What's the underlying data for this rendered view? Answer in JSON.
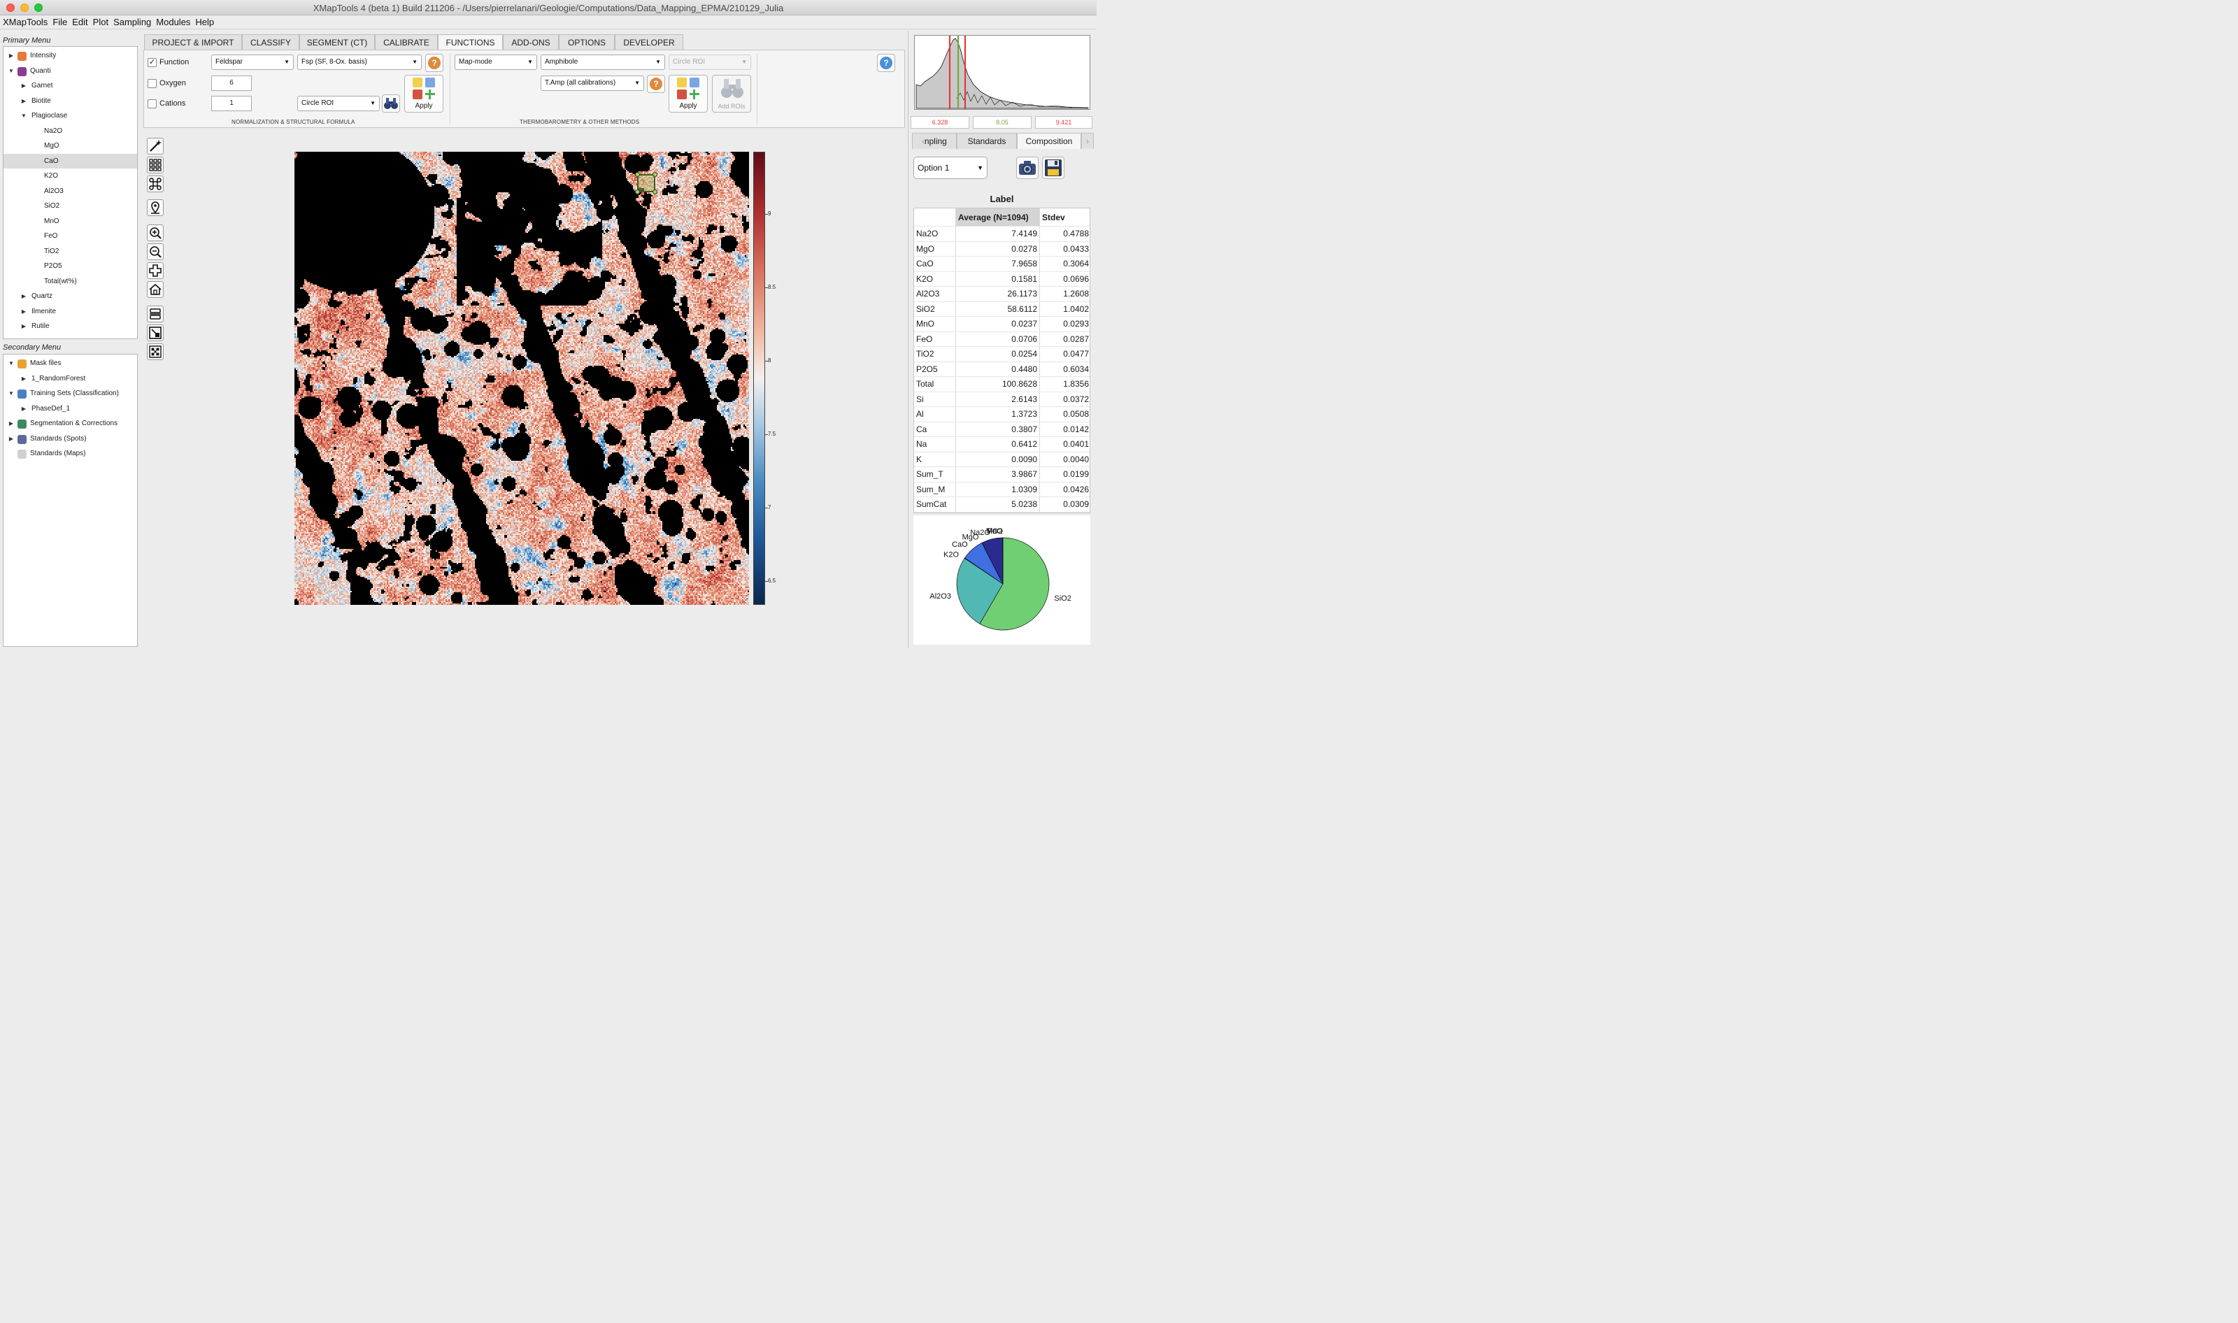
{
  "window": {
    "title": "XMapTools 4 (beta 1) Build 211206 - /Users/pierrelanari/Geologie/Computations/Data_Mapping_EPMA/210129_Julia"
  },
  "menubar": [
    "XMapTools",
    "File",
    "Edit",
    "Plot",
    "Sampling",
    "Modules",
    "Help"
  ],
  "primary_menu": {
    "title": "Primary Menu",
    "items": [
      {
        "label": "Intensity",
        "level": 0,
        "caret": "right",
        "icon": "intensity-icon",
        "color": "#e47a3b"
      },
      {
        "label": "Quanti",
        "level": 0,
        "caret": "down",
        "icon": "quanti-layers-icon",
        "color": "#8a3c8f"
      },
      {
        "label": "Garnet",
        "level": 1,
        "caret": "right"
      },
      {
        "label": "Biotite",
        "level": 1,
        "caret": "right"
      },
      {
        "label": "Plagioclase",
        "level": 1,
        "caret": "down"
      },
      {
        "label": "Na2O",
        "level": 2
      },
      {
        "label": "MgO",
        "level": 2
      },
      {
        "label": "CaO",
        "level": 2,
        "selected": true
      },
      {
        "label": "K2O",
        "level": 2
      },
      {
        "label": "Al2O3",
        "level": 2
      },
      {
        "label": "SiO2",
        "level": 2
      },
      {
        "label": "MnO",
        "level": 2
      },
      {
        "label": "FeO",
        "level": 2
      },
      {
        "label": "TiO2",
        "level": 2
      },
      {
        "label": "P2O5",
        "level": 2
      },
      {
        "label": "Total(wt%)",
        "level": 2
      },
      {
        "label": "Quartz",
        "level": 1,
        "caret": "right"
      },
      {
        "label": "Ilmenite",
        "level": 1,
        "caret": "right"
      },
      {
        "label": "Rutile",
        "level": 1,
        "caret": "right"
      }
    ]
  },
  "secondary_menu": {
    "title": "Secondary Menu",
    "items": [
      {
        "label": "Mask files",
        "level": 0,
        "caret": "down",
        "icon": "mask-layers-icon",
        "color": "#e8a232"
      },
      {
        "label": "1_RandomForest",
        "level": 1,
        "caret": "right"
      },
      {
        "label": "Training Sets (Classification)",
        "level": 0,
        "caret": "down",
        "icon": "share-nodes-icon",
        "color": "#4a7fc1"
      },
      {
        "label": "PhaseDef_1",
        "level": 1,
        "caret": "right"
      },
      {
        "label": "Segmentation & Corrections",
        "level": 0,
        "caret": "right",
        "icon": "segmentation-icon",
        "color": "#3c8a5c"
      },
      {
        "label": "Standards (Spots)",
        "level": 0,
        "caret": "right",
        "icon": "standards-spots-icon",
        "color": "#5a6a9a"
      },
      {
        "label": "Standards (Maps)",
        "level": 0,
        "icon": "standards-maps-icon",
        "color": "#d0d0d0"
      }
    ]
  },
  "tabs": [
    {
      "label": "PROJECT & IMPORT"
    },
    {
      "label": "CLASSIFY"
    },
    {
      "label": "SEGMENT (CT)"
    },
    {
      "label": "CALIBRATE"
    },
    {
      "label": "FUNCTIONS",
      "active": true
    },
    {
      "label": "ADD-ONS"
    },
    {
      "label": "OPTIONS"
    },
    {
      "label": "DEVELOPER"
    }
  ],
  "ribbon": {
    "function_label": "Function",
    "oxygen_label": "Oxygen",
    "cations_label": "Cations",
    "mineral_value": "Feldspar",
    "formula_value": "Fsp (SF, 8-Ox. basis)",
    "oxygen_value": "6",
    "cations_value": "1",
    "roi_value": "Circle ROI",
    "apply_label": "Apply",
    "section1_label": "NORMALIZATION & STRUCTURAL FORMULA",
    "mode_value": "Map-mode",
    "mineral2_value": "Amphibole",
    "calib_value": "T.Amp (all calibrations)",
    "roi2_value": "Circle ROI",
    "apply2_label": "Apply",
    "add_rois_label": "Add ROIs",
    "section2_label": "THERMOBAROMETRY & OTHER METHODS",
    "help_symbol": "?"
  },
  "colorbar": {
    "ticks": [
      {
        "value": "9"
      },
      {
        "value": "8.5"
      },
      {
        "value": "8"
      },
      {
        "value": "7.5"
      },
      {
        "value": "7"
      },
      {
        "value": "6.5"
      }
    ]
  },
  "histogram": {
    "min": "6.328",
    "median": "8.05",
    "max": "9.421",
    "min_color": "#e03a3a",
    "median_color": "#7aa83a",
    "max_color": "#e03a3a"
  },
  "right_tabs": [
    {
      "label": "npling"
    },
    {
      "label": "Standards"
    },
    {
      "label": "Composition",
      "active": true
    }
  ],
  "composition": {
    "option_value": "Option 1",
    "label": "Label",
    "col_average": "Average (N=1094)",
    "col_stdev": "Stdev",
    "rows": [
      {
        "name": "Na2O",
        "avg": "7.4149",
        "std": "0.4788"
      },
      {
        "name": "MgO",
        "avg": "0.0278",
        "std": "0.0433"
      },
      {
        "name": "CaO",
        "avg": "7.9658",
        "std": "0.3064"
      },
      {
        "name": "K2O",
        "avg": "0.1581",
        "std": "0.0696"
      },
      {
        "name": "Al2O3",
        "avg": "26.1173",
        "std": "1.2608"
      },
      {
        "name": "SiO2",
        "avg": "58.6112",
        "std": "1.0402"
      },
      {
        "name": "MnO",
        "avg": "0.0237",
        "std": "0.0293"
      },
      {
        "name": "FeO",
        "avg": "0.0706",
        "std": "0.0287"
      },
      {
        "name": "TiO2",
        "avg": "0.0254",
        "std": "0.0477"
      },
      {
        "name": "P2O5",
        "avg": "0.4480",
        "std": "0.6034"
      },
      {
        "name": "Total",
        "avg": "100.8628",
        "std": "1.8356"
      },
      {
        "name": "Si",
        "avg": "2.6143",
        "std": "0.0372"
      },
      {
        "name": "Al",
        "avg": "1.3723",
        "std": "0.0508"
      },
      {
        "name": "Ca",
        "avg": "0.3807",
        "std": "0.0142"
      },
      {
        "name": "Na",
        "avg": "0.6412",
        "std": "0.0401"
      },
      {
        "name": "K",
        "avg": "0.0090",
        "std": "0.0040"
      },
      {
        "name": "Sum_T",
        "avg": "3.9867",
        "std": "0.0199"
      },
      {
        "name": "Sum_M",
        "avg": "1.0309",
        "std": "0.0426"
      },
      {
        "name": "SumCat",
        "avg": "5.0238",
        "std": "0.0309"
      }
    ]
  },
  "chart_data": {
    "type": "pie",
    "slices": [
      {
        "label": "SiO2",
        "value": 58.6112,
        "color": "#6fcf72"
      },
      {
        "label": "Al2O3",
        "value": 26.1173,
        "color": "#52b8b4"
      },
      {
        "label": "K2O",
        "value": 0.1581,
        "color": "#4b7dc4"
      },
      {
        "label": "CaO",
        "value": 7.9658,
        "color": "#3f6fe0"
      },
      {
        "label": "MgO",
        "value": 0.0278,
        "color": "#3840b0"
      },
      {
        "label": "Na2O",
        "value": 7.4149,
        "color": "#2a2a90"
      },
      {
        "label": "TiO2",
        "value": 0.0254,
        "color": "#333388"
      },
      {
        "label": "FeO",
        "value": 0.0706,
        "color": "#333388"
      },
      {
        "label": "MnO",
        "value": 0.0237,
        "color": "#333388"
      }
    ]
  }
}
